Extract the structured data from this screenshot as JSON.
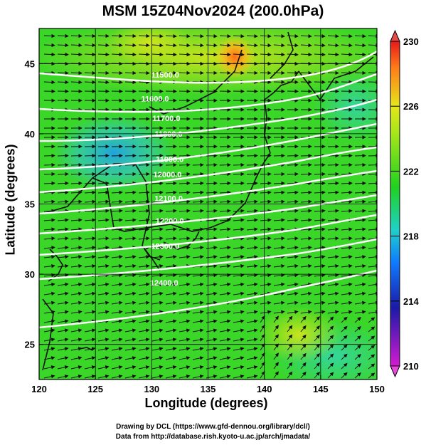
{
  "title": "MSM 15Z04Nov2024 (200.0hPa)",
  "x_axis": {
    "label": "Longitude (degrees)",
    "range": [
      120,
      150
    ],
    "ticks": [
      120,
      125,
      130,
      135,
      140,
      145,
      150
    ]
  },
  "y_axis": {
    "label": "Latitude  (degrees)",
    "range": [
      22.5,
      47.5
    ],
    "ticks": [
      25,
      30,
      35,
      40,
      45
    ]
  },
  "colorbar": {
    "min": 210,
    "max": 230,
    "ticks": [
      210,
      214,
      218,
      222,
      226,
      230
    ]
  },
  "contour_labels": [
    {
      "text": "11500.0",
      "lon": 131.2,
      "lat": 44.0
    },
    {
      "text": "11600.0",
      "lon": 130.3,
      "lat": 42.3
    },
    {
      "text": "11700.0",
      "lon": 131.3,
      "lat": 40.9
    },
    {
      "text": "11800.0",
      "lon": 131.5,
      "lat": 39.8
    },
    {
      "text": "11900.0",
      "lon": 131.6,
      "lat": 38.0
    },
    {
      "text": "12000.0",
      "lon": 131.4,
      "lat": 36.9
    },
    {
      "text": "12100.0",
      "lon": 131.5,
      "lat": 35.2
    },
    {
      "text": "12200.0",
      "lon": 131.6,
      "lat": 33.6
    },
    {
      "text": "12300.0",
      "lon": 131.2,
      "lat": 31.8
    },
    {
      "text": "12400.0",
      "lon": 131.1,
      "lat": 29.2
    }
  ],
  "credits": {
    "line1": "Drawing by DCL (https://www.gfd-dennou.org/library/dcl/)",
    "line2": "Data from http://database.rish.kyoto-u.ac.jp/arch/jmadata/"
  }
}
